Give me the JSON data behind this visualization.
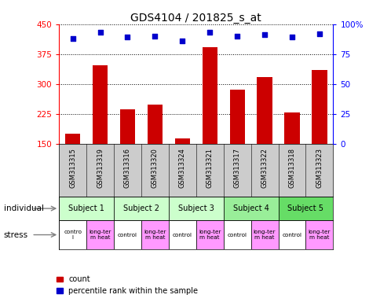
{
  "title": "GDS4104 / 201825_s_at",
  "samples": [
    "GSM313315",
    "GSM313319",
    "GSM313316",
    "GSM313320",
    "GSM313324",
    "GSM313321",
    "GSM313317",
    "GSM313322",
    "GSM313318",
    "GSM313323"
  ],
  "counts": [
    175,
    347,
    237,
    248,
    163,
    392,
    285,
    318,
    228,
    335
  ],
  "percentiles": [
    88,
    93,
    89,
    90,
    86,
    93,
    90,
    91,
    89,
    92
  ],
  "ylim_left": [
    150,
    450
  ],
  "yticks_left": [
    150,
    225,
    300,
    375,
    450
  ],
  "ylim_right": [
    0,
    100
  ],
  "yticks_right": [
    0,
    25,
    50,
    75,
    100
  ],
  "bar_color": "#cc0000",
  "dot_color": "#0000cc",
  "subjects": [
    {
      "label": "Subject 1",
      "cols": [
        0,
        1
      ],
      "color": "#ccffcc"
    },
    {
      "label": "Subject 2",
      "cols": [
        2,
        3
      ],
      "color": "#ccffcc"
    },
    {
      "label": "Subject 3",
      "cols": [
        4,
        5
      ],
      "color": "#ccffcc"
    },
    {
      "label": "Subject 4",
      "cols": [
        6,
        7
      ],
      "color": "#99ee99"
    },
    {
      "label": "Subject 5",
      "cols": [
        8,
        9
      ],
      "color": "#66dd66"
    }
  ],
  "stress": [
    {
      "label": "contro\nl",
      "color": "#ffffff"
    },
    {
      "label": "long-ter\nm heat",
      "color": "#ff99ff"
    },
    {
      "label": "control",
      "color": "#ffffff"
    },
    {
      "label": "long-ter\nm heat",
      "color": "#ff99ff"
    },
    {
      "label": "control",
      "color": "#ffffff"
    },
    {
      "label": "long-ter\nm heat",
      "color": "#ff99ff"
    },
    {
      "label": "control",
      "color": "#ffffff"
    },
    {
      "label": "long-ter\nm heat",
      "color": "#ff99ff"
    },
    {
      "label": "control",
      "color": "#ffffff"
    },
    {
      "label": "long-ter\nm heat",
      "color": "#ff99ff"
    }
  ],
  "legend_count_color": "#cc0000",
  "legend_percentile_color": "#0000cc",
  "bg_color": "#ffffff",
  "sample_bg_color": "#cccccc"
}
